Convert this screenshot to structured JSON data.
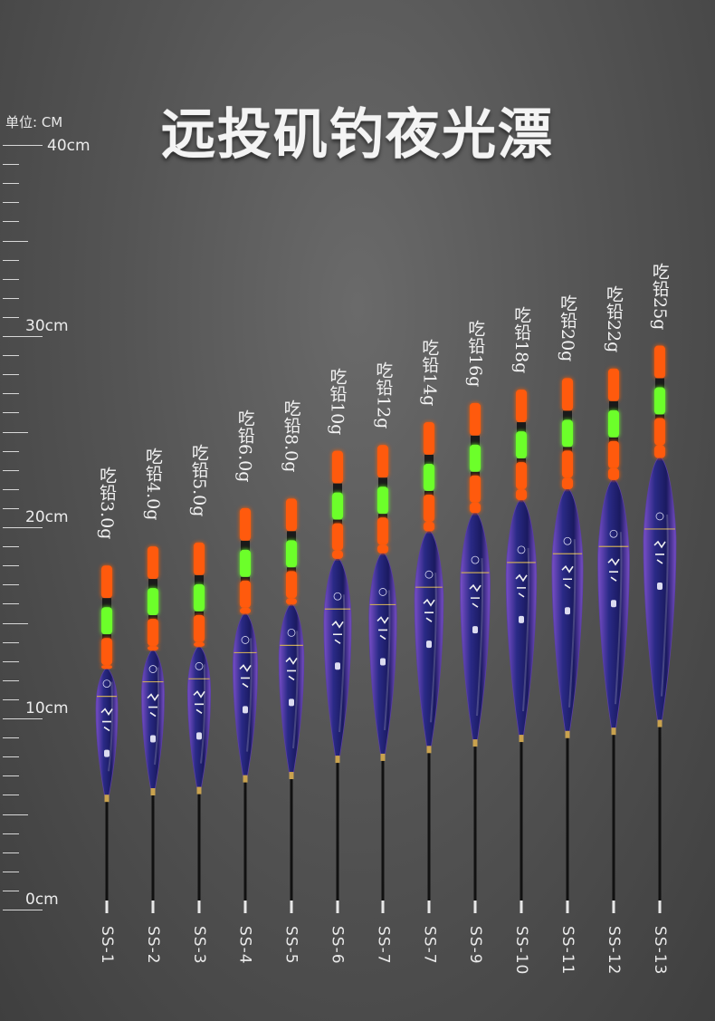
{
  "title": "远投矶钓夜光漂",
  "ruler": {
    "unit_label": "单位: CM",
    "marks": [
      {
        "value": 40,
        "label": "40cm"
      },
      {
        "value": 30,
        "label": "30cm"
      },
      {
        "value": 20,
        "label": "20cm"
      },
      {
        "value": 10,
        "label": "10cm"
      },
      {
        "value": 0,
        "label": "0cm"
      }
    ]
  },
  "floats": [
    {
      "model": "SS-1",
      "lead": "吃铅3.0g",
      "length_cm": 18.0
    },
    {
      "model": "SS-2",
      "lead": "吃铅4.0g",
      "length_cm": 19.0
    },
    {
      "model": "SS-3",
      "lead": "吃铅5.0g",
      "length_cm": 19.2
    },
    {
      "model": "SS-4",
      "lead": "吃铅6.0g",
      "length_cm": 21.0
    },
    {
      "model": "SS-5",
      "lead": "吃铅8.0g",
      "length_cm": 21.5
    },
    {
      "model": "SS-6",
      "lead": "吃铅10g",
      "length_cm": 24.0
    },
    {
      "model": "SS-7",
      "lead": "吃铅12g",
      "length_cm": 24.3
    },
    {
      "model": "SS-7",
      "lead": "吃铅14g",
      "length_cm": 25.5
    },
    {
      "model": "SS-9",
      "lead": "吃铅16g",
      "length_cm": 26.5
    },
    {
      "model": "SS-10",
      "lead": "吃铅18g",
      "length_cm": 27.2
    },
    {
      "model": "SS-11",
      "lead": "吃铅20g",
      "length_cm": 27.8
    },
    {
      "model": "SS-12",
      "lead": "吃铅22g",
      "length_cm": 28.3
    },
    {
      "model": "SS-13",
      "lead": "吃铅25g",
      "length_cm": 29.5
    }
  ],
  "colors": {
    "body": "#2a2a86",
    "body_edge": "#7a4fc8",
    "tip_orange": "#ff5a10",
    "tip_green": "#6cff2a",
    "stem": "#111111"
  }
}
